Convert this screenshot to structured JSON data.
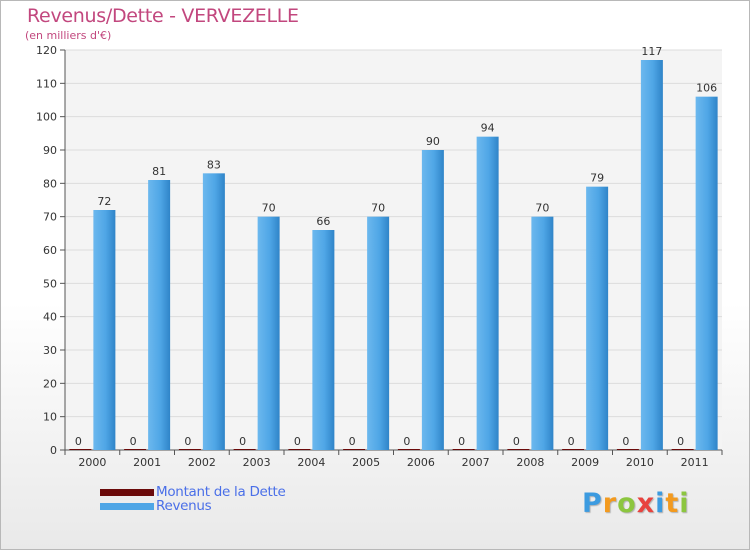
{
  "header": {
    "title": "Revenus/Dette - VERVEZELLE",
    "subtitle": "(en milliers d'€)"
  },
  "legend": {
    "items": [
      {
        "label": "Montant de la Dette",
        "color": "#6b0a0a"
      },
      {
        "label": "Revenus",
        "color": "#4fa6e6"
      }
    ]
  },
  "logo": {
    "letters": [
      "P",
      "r",
      "o",
      "x",
      "i",
      "t",
      "i"
    ]
  },
  "chart_data": {
    "type": "bar",
    "title": "Revenus/Dette - VERVEZELLE",
    "subtitle": "(en milliers d'€)",
    "categories": [
      "2000",
      "2001",
      "2002",
      "2003",
      "2004",
      "2005",
      "2006",
      "2007",
      "2008",
      "2009",
      "2010",
      "2011"
    ],
    "series": [
      {
        "name": "Montant de la Dette",
        "color": "#6b0a0a",
        "values": [
          0,
          0,
          0,
          0,
          0,
          0,
          0,
          0,
          0,
          0,
          0,
          0
        ]
      },
      {
        "name": "Revenus",
        "color": "#4fa6e6",
        "values": [
          72,
          81,
          83,
          70,
          66,
          70,
          90,
          94,
          70,
          79,
          117,
          106
        ]
      }
    ],
    "ylim": [
      0,
      120
    ],
    "yticks": [
      0,
      10,
      20,
      30,
      40,
      50,
      60,
      70,
      80,
      90,
      100,
      110,
      120
    ],
    "grid": true,
    "legend_position": "bottom-left"
  }
}
